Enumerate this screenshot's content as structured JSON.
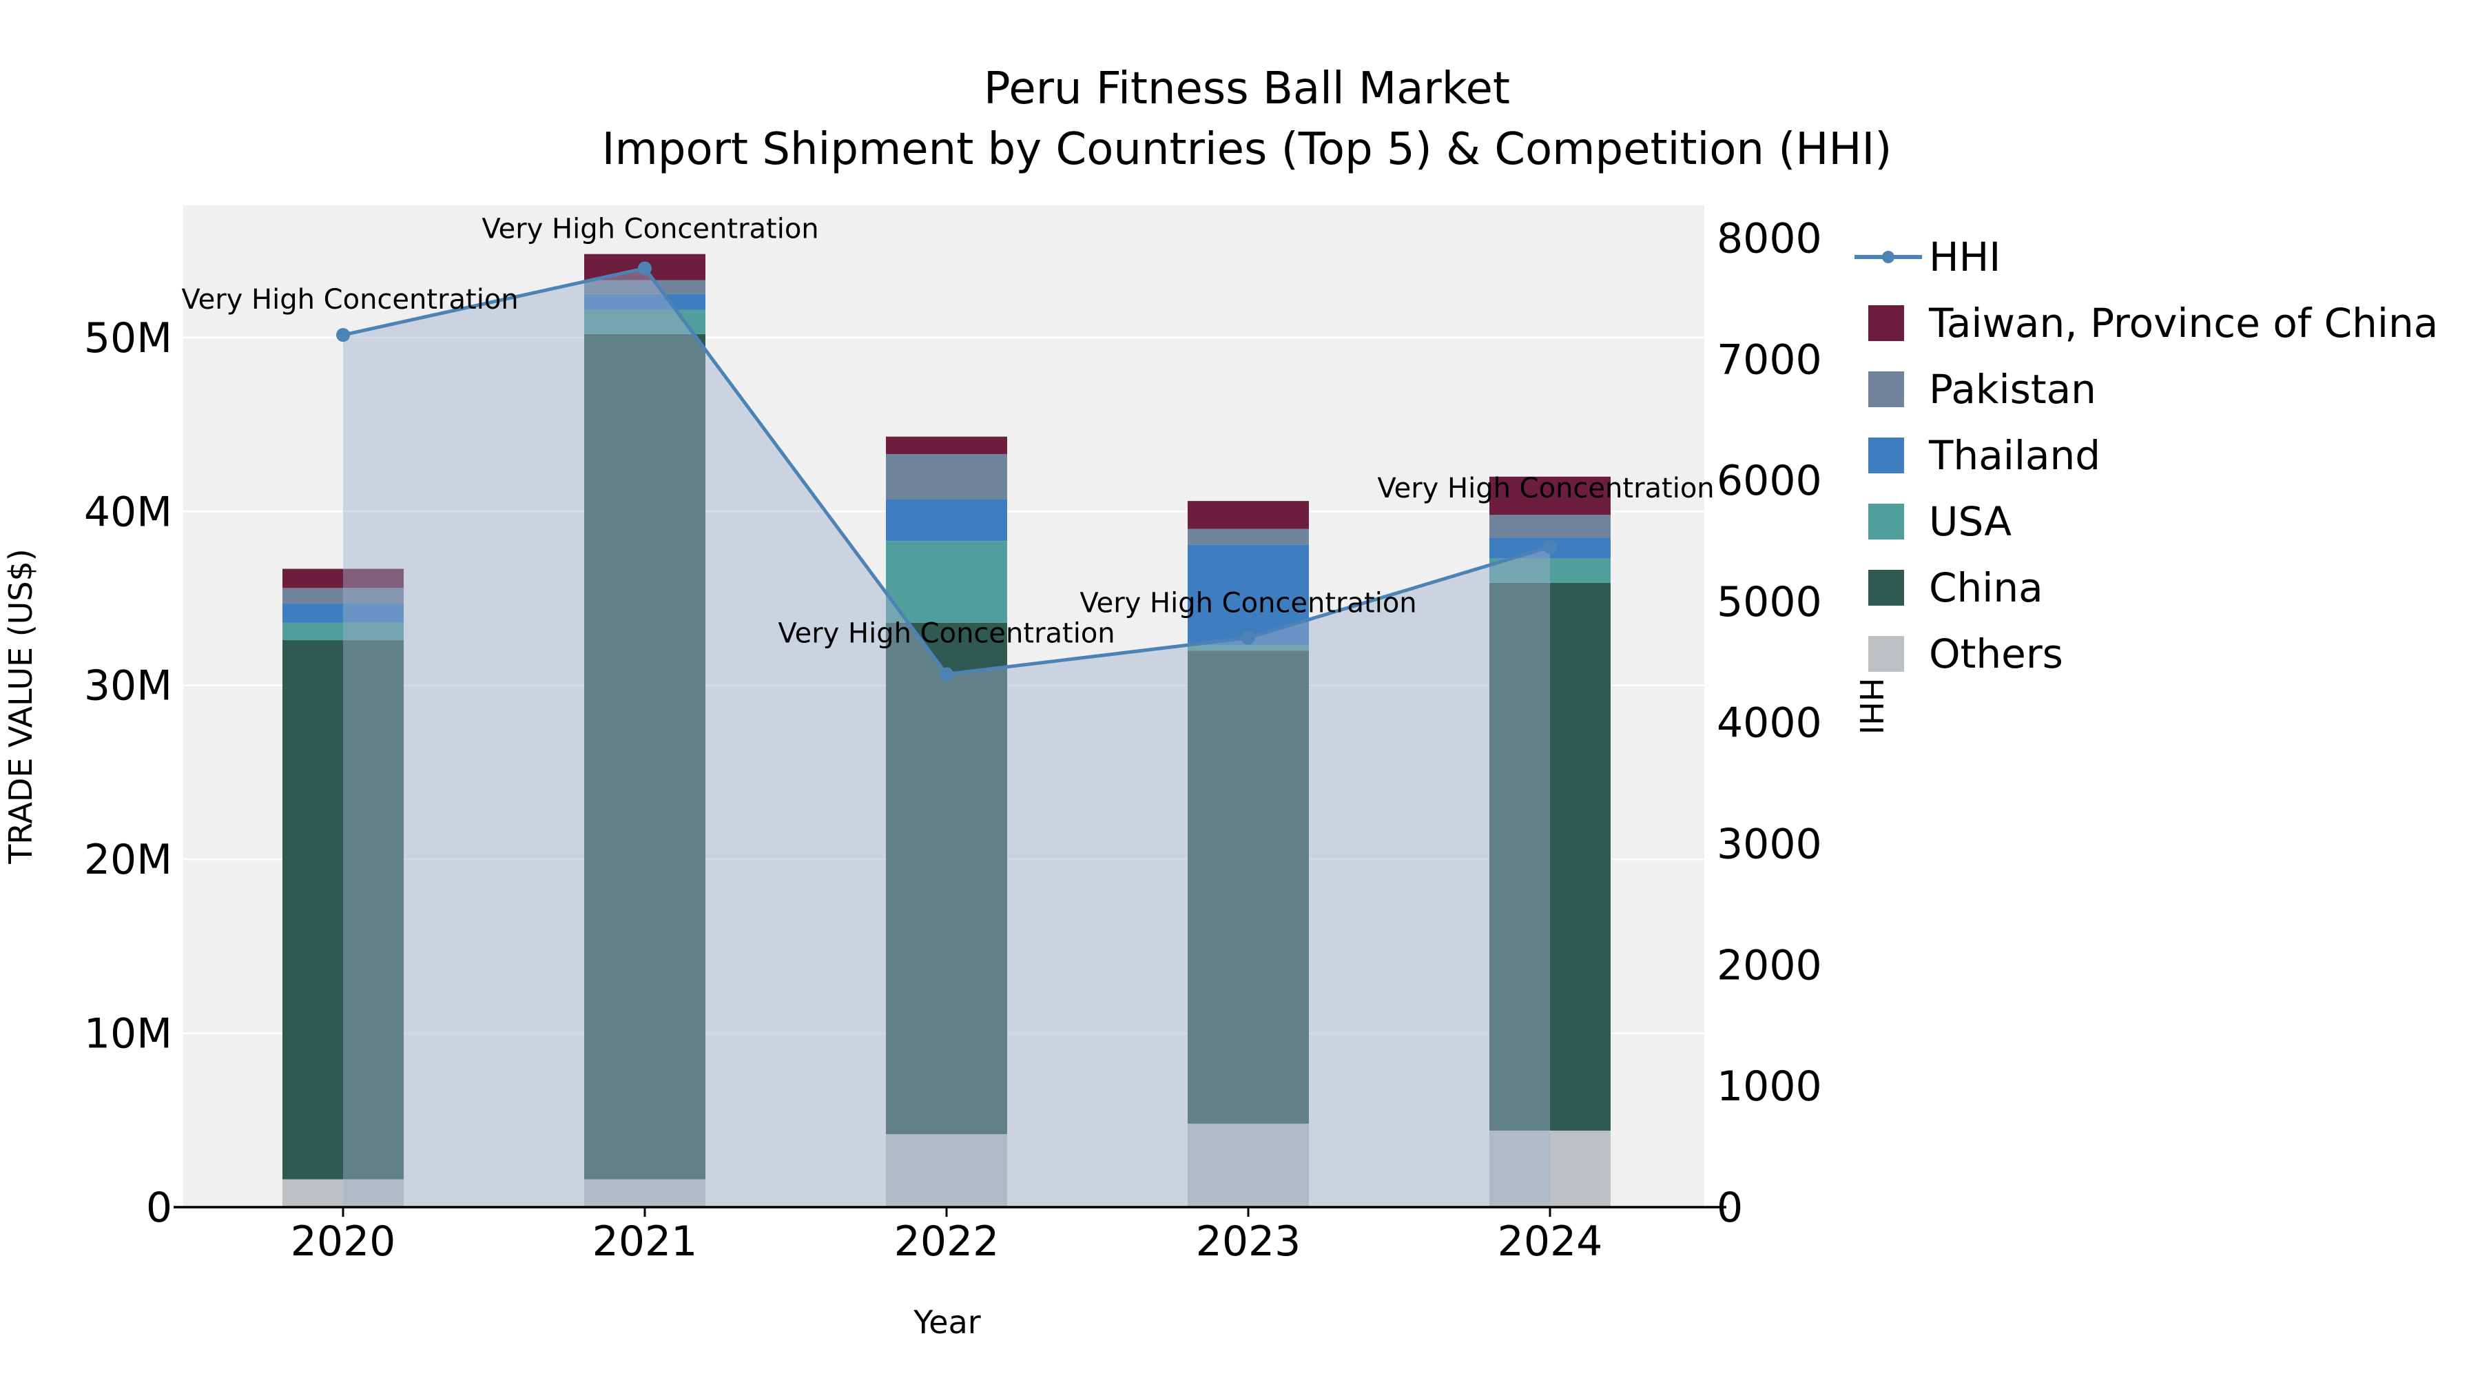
{
  "title": {
    "line1": "Peru Fitness Ball Market",
    "line2": "Import Shipment by Countries (Top 5) & Competition (HHI)"
  },
  "axes": {
    "x_label": "Year",
    "y_left_label": "TRADE VALUE (US$)",
    "y_right_label": "HHI"
  },
  "chart_data": {
    "type": "bar",
    "subtype": "stacked-bars-with-line-overlay",
    "categories": [
      "2020",
      "2021",
      "2022",
      "2023",
      "2024"
    ],
    "value_unit": "millions USD",
    "ylim_left": [
      0,
      57.6
    ],
    "ylim_right": [
      0,
      8270
    ],
    "y_left_tick_values": [
      0,
      10,
      20,
      30,
      40,
      50
    ],
    "y_left_tick_labels": [
      "0",
      "10M",
      "20M",
      "30M",
      "40M",
      "50M"
    ],
    "y_right_tick_values": [
      0,
      1000,
      2000,
      3000,
      4000,
      5000,
      6000,
      7000,
      8000
    ],
    "y_right_tick_labels": [
      "0",
      "1000",
      "2000",
      "3000",
      "4000",
      "5000",
      "6000",
      "7000",
      "8000"
    ],
    "bar_series": [
      {
        "name": "Others",
        "color": "#bdc1c3",
        "values": [
          1.6,
          1.6,
          4.2,
          4.8,
          4.4
        ]
      },
      {
        "name": "China",
        "color": "#305952",
        "values": [
          31.0,
          48.6,
          29.4,
          27.2,
          31.5
        ]
      },
      {
        "name": "USA",
        "color": "#519f9c",
        "values": [
          1.0,
          1.4,
          4.7,
          0.3,
          1.4
        ]
      },
      {
        "name": "Thailand",
        "color": "#3e7ec0",
        "values": [
          1.1,
          0.9,
          2.4,
          5.8,
          1.2
        ]
      },
      {
        "name": "Pakistan",
        "color": "#70849b",
        "values": [
          0.9,
          0.8,
          2.6,
          0.9,
          1.3
        ]
      },
      {
        "name": "Taiwan, Province of China",
        "color": "#6d1d3d",
        "values": [
          1.1,
          1.5,
          1.0,
          1.6,
          2.2
        ]
      }
    ],
    "line_series": {
      "name": "HHI",
      "color": "#4c83b6",
      "area_fill": "rgba(159,176,204,0.45)",
      "values": [
        7200,
        7750,
        4400,
        4700,
        5450
      ]
    },
    "annotations": [
      "Very High Concentration",
      "Very High Concentration",
      "Very High Concentration",
      "Very High Concentration",
      "Very High Concentration"
    ],
    "grid": "horizontal-white-lines",
    "plot_background": "#f0f0f0",
    "legend_position": "right"
  },
  "legend": {
    "items": [
      {
        "label": "HHI",
        "type": "line",
        "color": "#4c83b6"
      },
      {
        "label": "Taiwan, Province of China",
        "type": "swatch",
        "color": "#6d1d3d"
      },
      {
        "label": "Pakistan",
        "type": "swatch",
        "color": "#70849b"
      },
      {
        "label": "Thailand",
        "type": "swatch",
        "color": "#3e7ec0"
      },
      {
        "label": "USA",
        "type": "swatch",
        "color": "#519f9c"
      },
      {
        "label": "China",
        "type": "swatch",
        "color": "#305952"
      },
      {
        "label": "Others",
        "type": "swatch",
        "color": "#bdc1c3"
      }
    ]
  }
}
